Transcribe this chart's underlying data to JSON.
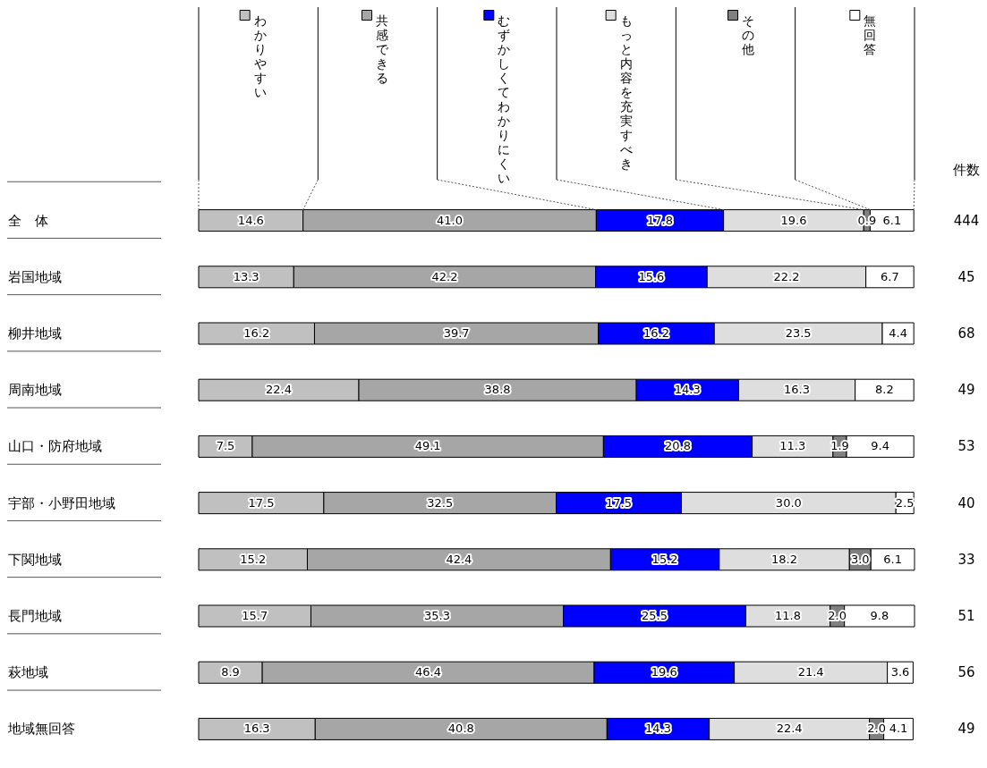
{
  "chart_data": {
    "type": "bar",
    "orientation": "horizontal",
    "stacked": true,
    "legend": "top",
    "tick_labels": "y",
    "categories": [
      "全　体",
      "岩国地域",
      "柳井地域",
      "周南地域",
      "山口・防府地域",
      "宇部・小野田地域",
      "下関地域",
      "長門地域",
      "萩地域",
      "地域無回答"
    ],
    "series": [
      {
        "name": "わかりやすい",
        "color": "#c0c0c0",
        "values": [
          14.6,
          13.3,
          16.2,
          22.4,
          7.5,
          17.5,
          15.2,
          15.7,
          8.9,
          16.3
        ],
        "value_labels": [
          "14.6",
          "13.3",
          "16.2",
          "22.4",
          "7.5",
          "17.5",
          "15.2",
          "15.7",
          "8.9",
          "16.3"
        ]
      },
      {
        "name": "共感できる",
        "color": "#a6a6a6",
        "values": [
          41.0,
          42.2,
          39.7,
          38.8,
          49.1,
          32.5,
          42.4,
          35.3,
          46.4,
          40.8
        ],
        "value_labels": [
          "41.0",
          "42.2",
          "39.7",
          "38.8",
          "49.1",
          "32.5",
          "42.4",
          "35.3",
          "46.4",
          "40.8"
        ]
      },
      {
        "name": "むずかしくてわかりにくい",
        "color": "#0000ff",
        "values": [
          17.8,
          15.6,
          16.2,
          14.3,
          20.8,
          17.5,
          15.2,
          25.5,
          19.6,
          14.3
        ],
        "value_labels": [
          "17.8",
          "15.6",
          "16.2",
          "14.3",
          "20.8",
          "17.5",
          "15.2",
          "25.5",
          "19.6",
          "14.3"
        ]
      },
      {
        "name": "もっと内容を充実すべき",
        "color": "#dedede",
        "values": [
          19.6,
          22.2,
          23.5,
          16.3,
          11.3,
          30.0,
          18.2,
          11.8,
          21.4,
          22.4
        ],
        "value_labels": [
          "19.6",
          "22.2",
          "23.5",
          "16.3",
          "11.3",
          "30.0",
          "18.2",
          "11.8",
          "21.4",
          "22.4"
        ]
      },
      {
        "name": "その他",
        "color": "#808080",
        "values": [
          0.9,
          null,
          null,
          null,
          1.9,
          null,
          3.0,
          2.0,
          null,
          2.0
        ],
        "value_labels": [
          "0.9",
          null,
          null,
          null,
          "1.9",
          null,
          "3.0",
          "2.0",
          null,
          "2.0"
        ]
      },
      {
        "name": "無回答",
        "color": "#ffffff",
        "values": [
          6.1,
          6.7,
          4.4,
          8.2,
          9.4,
          2.5,
          6.1,
          9.8,
          3.6,
          4.1
        ],
        "value_labels": [
          "6.1",
          "6.7",
          "4.4",
          "8.2",
          "9.4",
          "2.5",
          "6.1",
          "9.8",
          "3.6",
          "4.1"
        ]
      }
    ],
    "annotations": [
      "件数",
      "444",
      "45",
      "68",
      "49",
      "53",
      "40",
      "33",
      "51",
      "56",
      "49"
    ]
  }
}
